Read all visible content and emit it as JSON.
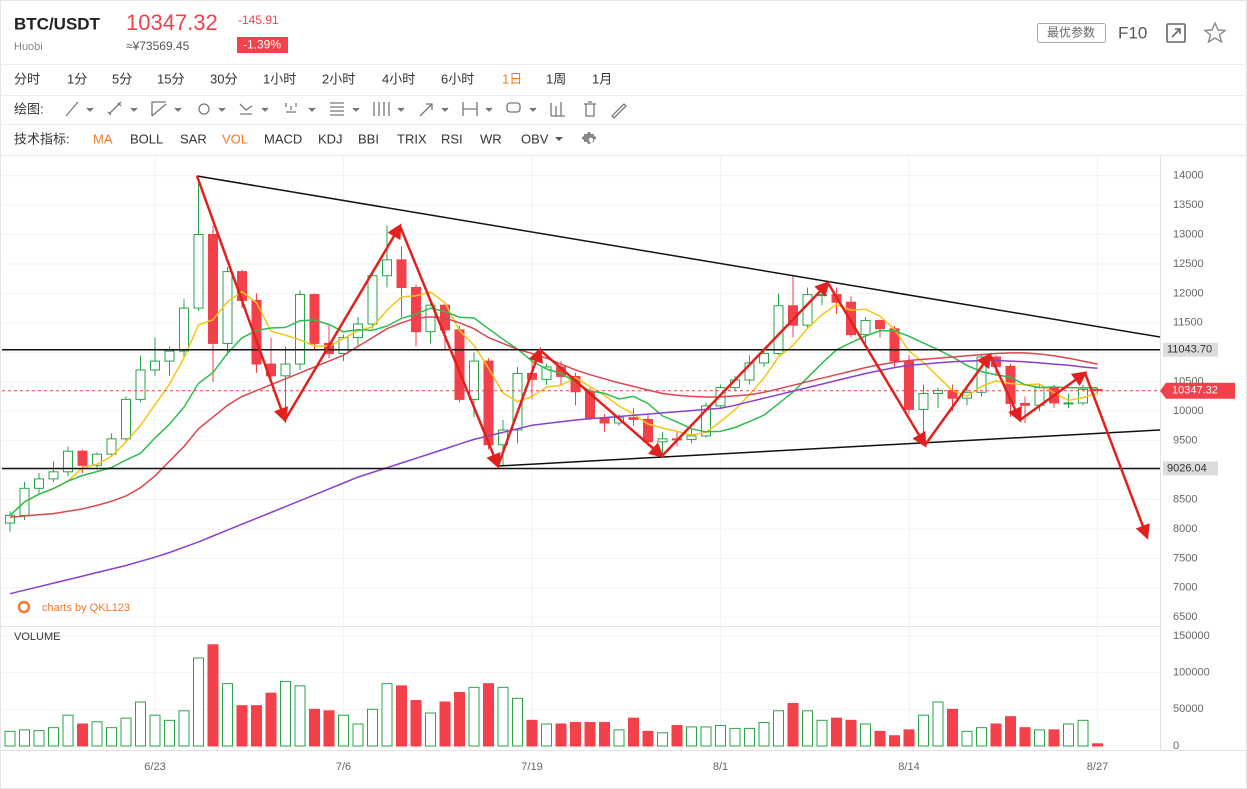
{
  "header": {
    "symbol": "BTC/USDT",
    "exchange": "Huobi",
    "price": "10347.32",
    "change": "-145.91",
    "price_cny": "≈¥73569.45",
    "change_pct": "-1.39%",
    "params_button": "最优参数",
    "f10_button": "F10"
  },
  "toolbar": {
    "timeframes": [
      {
        "label": "分时"
      },
      {
        "label": "1分"
      },
      {
        "label": "5分"
      },
      {
        "label": "15分"
      },
      {
        "label": "30分"
      },
      {
        "label": "1小时"
      },
      {
        "label": "2小时"
      },
      {
        "label": "4小时"
      },
      {
        "label": "6小时"
      },
      {
        "label": "1日",
        "selected": true
      },
      {
        "label": "1周"
      },
      {
        "label": "1月"
      }
    ],
    "drawing_label": "绘图:",
    "indicators_label": "技术指标:",
    "indicators": [
      {
        "label": "MA",
        "selected": true
      },
      {
        "label": "BOLL"
      },
      {
        "label": "SAR"
      },
      {
        "label": "VOL",
        "selected": true
      },
      {
        "label": "MACD"
      },
      {
        "label": "KDJ"
      },
      {
        "label": "BBI"
      },
      {
        "label": "TRIX"
      },
      {
        "label": "RSI"
      },
      {
        "label": "WR"
      },
      {
        "label": "OBV"
      }
    ]
  },
  "chart_data": {
    "type": "candlestick",
    "x": [
      null,
      null,
      null,
      null,
      null,
      null,
      null,
      null,
      null,
      null,
      "6/23",
      null,
      null,
      null,
      null,
      null,
      null,
      null,
      null,
      null,
      null,
      null,
      null,
      "7/6",
      null,
      null,
      null,
      null,
      null,
      null,
      null,
      null,
      null,
      null,
      null,
      null,
      "7/19",
      null,
      null,
      null,
      null,
      null,
      null,
      null,
      null,
      null,
      null,
      null,
      null,
      "8/1",
      null,
      null,
      null,
      null,
      null,
      null,
      null,
      null,
      null,
      null,
      null,
      null,
      "8/14",
      null,
      null,
      null,
      null,
      null,
      null,
      null,
      null,
      null,
      null,
      null,
      null,
      "8/27"
    ],
    "open": [
      8100,
      8230,
      8690,
      8850,
      8970,
      9320,
      9080,
      9270,
      9530,
      10200,
      10700,
      10850,
      11020,
      11750,
      13000,
      11150,
      12370,
      11880,
      10800,
      10600,
      10800,
      11980,
      11150,
      10980,
      11250,
      11480,
      12300,
      12570,
      12100,
      11350,
      11800,
      11380,
      10200,
      10850,
      9430,
      9680,
      10640,
      10540,
      10750,
      10590,
      10330,
      9880,
      9800,
      9890,
      9860,
      9480,
      9530,
      9520,
      9580,
      10090,
      10400,
      10530,
      10820,
      10980,
      11790,
      11460,
      11980,
      11980,
      11850,
      11300,
      11540,
      11400,
      10850,
      10030,
      10300,
      10350,
      10220,
      10320,
      10920,
      10760,
      10130,
      10100,
      10400,
      10140,
      10140,
      10370
    ],
    "high": [
      8300,
      8800,
      8950,
      9150,
      9400,
      9350,
      9300,
      9620,
      10250,
      10950,
      11250,
      11100,
      11900,
      13880,
      13150,
      12450,
      12400,
      12000,
      11250,
      11100,
      12050,
      12000,
      11450,
      11300,
      11600,
      12350,
      13150,
      12800,
      12150,
      11900,
      11850,
      11450,
      11000,
      10900,
      9850,
      10750,
      10900,
      10800,
      10850,
      10650,
      10400,
      9950,
      9950,
      10050,
      9950,
      9650,
      9650,
      9700,
      10150,
      10450,
      10600,
      10950,
      11050,
      12000,
      12300,
      12100,
      12050,
      12100,
      11950,
      11600,
      11550,
      11450,
      10950,
      10450,
      10400,
      10450,
      10450,
      10950,
      10950,
      10800,
      10250,
      10450,
      10450,
      10300,
      10450,
      10400
    ],
    "low": [
      7950,
      8150,
      8600,
      8800,
      8900,
      8950,
      9000,
      9250,
      9500,
      10150,
      10600,
      10600,
      10900,
      11700,
      10500,
      10950,
      11750,
      10650,
      10550,
      9800,
      10700,
      11050,
      10900,
      10850,
      11100,
      11400,
      12100,
      11600,
      11100,
      11150,
      11050,
      10150,
      9900,
      9350,
      9070,
      9450,
      10200,
      10450,
      10450,
      10100,
      9850,
      9650,
      9750,
      9750,
      9400,
      9250,
      9400,
      9450,
      9550,
      10050,
      10350,
      10450,
      10750,
      10950,
      11250,
      11400,
      11800,
      11650,
      11250,
      11150,
      11250,
      10750,
      9950,
      9450,
      10050,
      10000,
      10100,
      10250,
      10600,
      9900,
      9800,
      10000,
      10050,
      10050,
      10100,
      10300
    ],
    "close": [
      8230,
      8690,
      8850,
      8970,
      9320,
      9080,
      9270,
      9530,
      10200,
      10700,
      10850,
      11020,
      11750,
      13000,
      11150,
      12370,
      11880,
      10800,
      10600,
      10800,
      11980,
      11150,
      10980,
      11250,
      11480,
      12300,
      12570,
      12100,
      11350,
      11800,
      11380,
      10200,
      10850,
      9430,
      9680,
      10640,
      10540,
      10750,
      10590,
      10330,
      9880,
      9800,
      9890,
      9860,
      9480,
      9530,
      9520,
      9580,
      10090,
      10400,
      10530,
      10820,
      10980,
      11790,
      11460,
      11980,
      11980,
      11850,
      11300,
      11540,
      11400,
      10850,
      10030,
      10300,
      10350,
      10220,
      10320,
      10920,
      10760,
      10130,
      10100,
      10400,
      10140,
      10140,
      10370,
      10347.32
    ],
    "up_color": "#2aa34a",
    "down_color": "#f2414a",
    "ylim": [
      6250,
      14350
    ],
    "yticks": [
      6500,
      7000,
      7500,
      8000,
      8500,
      9000,
      9500,
      10000,
      10500,
      11000,
      11500,
      12000,
      12500,
      13000,
      13500,
      14000
    ],
    "moving_averages": [
      {
        "color": "#f5c518",
        "values": [
          8230,
          8460,
          8590,
          8685,
          8812,
          9042,
          9098,
          9234,
          9480,
          9756,
          10110,
          10460,
          10904,
          11464,
          11554,
          11858,
          12030,
          11840,
          11360,
          11290,
          11212,
          11106,
          11102,
          11232,
          11368,
          11432,
          11716,
          11940,
          11960,
          12024,
          11840,
          11366,
          11116,
          10732,
          10308,
          10160,
          10248,
          10408,
          10440,
          10570,
          10418,
          10270,
          10088,
          9952,
          9782,
          9712,
          9656,
          9594,
          9640,
          9824,
          10024,
          10284,
          10564,
          10922,
          11116,
          11406,
          11638,
          11812,
          11714,
          11730,
          11614,
          11388,
          11024,
          10824,
          10586,
          10350,
          10254,
          10422,
          10514,
          10470,
          10446,
          10462,
          10310,
          10182,
          10230,
          10309
        ]
      },
      {
        "color": "#2ebd4e",
        "values": [
          8230,
          8460,
          8590,
          8685,
          8812,
          8907,
          8973,
          9043,
          9171,
          9284,
          9546,
          9779,
          10069,
          10472,
          10655,
          10984,
          11245,
          11372,
          11412,
          11422,
          11535,
          11548,
          11471,
          11348,
          11381,
          11374,
          11445,
          11575,
          11650,
          11750,
          11690,
          11595,
          11582,
          11400,
          11220,
          11054,
          10851,
          10716,
          10640,
          10493,
          10343,
          10303,
          10207,
          10250,
          10130,
          9919,
          9817,
          9700,
          9650,
          9657,
          9722,
          9824,
          9933,
          10126,
          10324,
          10569,
          10815,
          11042,
          11163,
          11277,
          11364,
          11366,
          11271,
          11155,
          11044,
          10920,
          10778,
          10672,
          10618,
          10577,
          10447,
          10402,
          10412,
          10396,
          10399,
          10399
        ]
      },
      {
        "color": "#d9474f",
        "values": [
          8200,
          8220,
          8240,
          8260,
          8300,
          8340,
          8400,
          8470,
          8560,
          8700,
          8900,
          9150,
          9400,
          9700,
          9900,
          10100,
          10250,
          10350,
          10450,
          10550,
          10650,
          10750,
          10850,
          10950,
          11100,
          11250,
          11400,
          11500,
          11580,
          11600,
          11580,
          11500,
          11400,
          11250,
          11150,
          11050,
          10980,
          10900,
          10800,
          10700,
          10620,
          10550,
          10480,
          10420,
          10360,
          10300,
          10270,
          10250,
          10240,
          10240,
          10260,
          10280,
          10320,
          10380,
          10440,
          10500,
          10560,
          10620,
          10680,
          10740,
          10790,
          10830,
          10860,
          10880,
          10900,
          10920,
          10940,
          10960,
          10980,
          10990,
          10990,
          10970,
          10940,
          10900,
          10850,
          10800
        ]
      },
      {
        "color": "#8a3fd1",
        "values": [
          6900,
          6960,
          7020,
          7080,
          7140,
          7200,
          7260,
          7320,
          7380,
          7450,
          7520,
          7600,
          7690,
          7780,
          7880,
          7980,
          8080,
          8180,
          8280,
          8380,
          8480,
          8580,
          8680,
          8780,
          8880,
          8960,
          9040,
          9120,
          9200,
          9280,
          9360,
          9440,
          9520,
          9580,
          9640,
          9700,
          9760,
          9790,
          9820,
          9850,
          9870,
          9890,
          9910,
          9930,
          9950,
          9970,
          9990,
          10010,
          10030,
          10050,
          10100,
          10160,
          10220,
          10280,
          10340,
          10400,
          10460,
          10520,
          10580,
          10640,
          10690,
          10740,
          10780,
          10800,
          10820,
          10840,
          10850,
          10860,
          10860,
          10850,
          10840,
          10820,
          10800,
          10780,
          10750,
          10730
        ]
      }
    ],
    "price_lines": [
      {
        "value": 11043.7,
        "label": "11043.70"
      },
      {
        "value": 9026.04,
        "label": "9026.04"
      }
    ],
    "last_price": {
      "value": 10347.32,
      "label": "10347.32"
    },
    "watermark": "charts by QKL123",
    "volume": {
      "title": "VOLUME",
      "values": [
        20000,
        22000,
        21000,
        25000,
        42000,
        30000,
        33000,
        25000,
        38000,
        60000,
        42000,
        35000,
        48000,
        120000,
        138000,
        85000,
        55000,
        55000,
        72000,
        88000,
        82000,
        50000,
        48000,
        42000,
        30000,
        50000,
        85000,
        82000,
        62000,
        45000,
        60000,
        73000,
        80000,
        85000,
        80000,
        65000,
        35000,
        30000,
        30000,
        32000,
        32000,
        32000,
        22000,
        38000,
        20000,
        18000,
        28000,
        26000,
        26000,
        28000,
        24000,
        24000,
        32000,
        48000,
        58000,
        48000,
        35000,
        38000,
        35000,
        30000,
        20000,
        14000,
        22000,
        42000,
        60000,
        50000,
        20000,
        25000,
        30000,
        40000,
        25000,
        22000,
        22000,
        30000,
        35000,
        3000
      ],
      "ylim": [
        0,
        165000
      ],
      "yticks": [
        0,
        50000,
        100000,
        150000
      ]
    }
  }
}
